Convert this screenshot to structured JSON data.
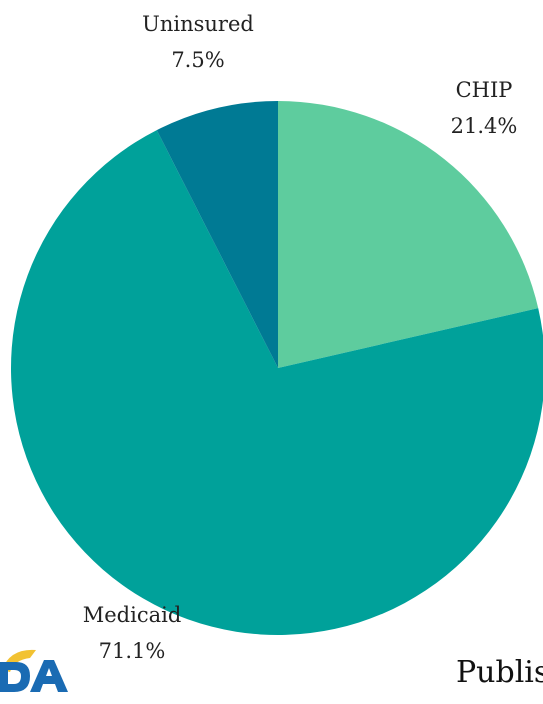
{
  "chart_data": {
    "type": "pie",
    "title": "",
    "categories": [
      "CHIP",
      "Medicaid",
      "Uninsured"
    ],
    "values": [
      21.4,
      71.1,
      7.5
    ],
    "value_labels": [
      "21.4%",
      "71.1%",
      "7.5%"
    ],
    "colors": [
      "#5ecc9e",
      "#00a19a",
      "#007a94"
    ],
    "legend": "none"
  },
  "footer": {
    "text": "Publis",
    "logo_letters": "DA",
    "logo_colors": [
      "#f2c232",
      "#1a6bb3"
    ]
  }
}
